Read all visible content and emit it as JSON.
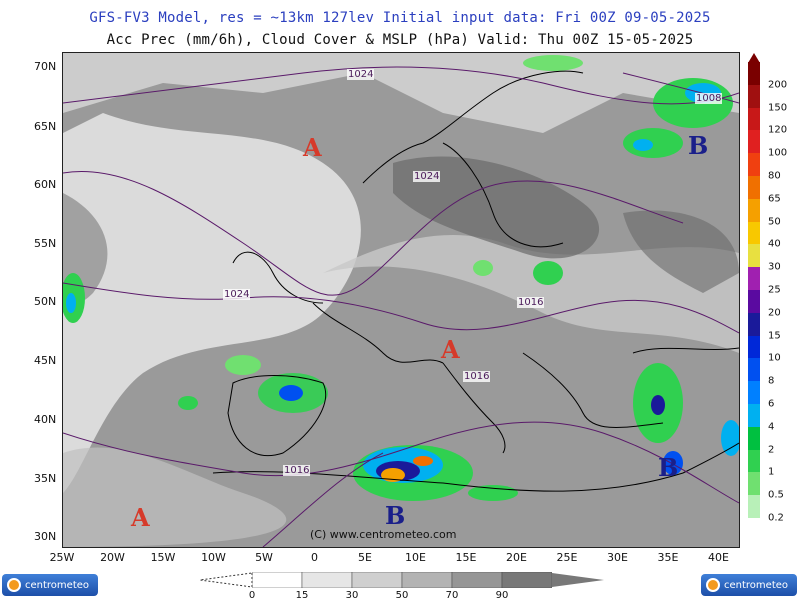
{
  "header": {
    "line1": "GFS-FV3 Model, res = ~13km 127lev    Initial input data: Fri 00Z 09-05-2025",
    "line2": "Acc Prec (mm/6h), Cloud Cover & MSLP (hPa)  Valid: Thu 00Z 15-05-2025"
  },
  "axes": {
    "lat_labels": [
      "70N",
      "65N",
      "60N",
      "55N",
      "50N",
      "45N",
      "40N",
      "35N",
      "30N"
    ],
    "lon_labels": [
      "25W",
      "20W",
      "15W",
      "10W",
      "5W",
      "0",
      "5E",
      "10E",
      "15E",
      "20E",
      "25E",
      "30E",
      "35E",
      "40E"
    ]
  },
  "precip_legend": {
    "labels": [
      "200",
      "150",
      "120",
      "100",
      "80",
      "65",
      "50",
      "40",
      "30",
      "25",
      "20",
      "15",
      "10",
      "8",
      "6",
      "4",
      "2",
      "1",
      "0.5",
      "0.2"
    ],
    "colors": [
      "#7a0000",
      "#a01010",
      "#c81818",
      "#e02020",
      "#f04010",
      "#f07000",
      "#f5a000",
      "#f8c800",
      "#e8e040",
      "#a020b0",
      "#5a0aa0",
      "#1a1a9a",
      "#0028d8",
      "#0050f0",
      "#0080ff",
      "#00b0f0",
      "#00c040",
      "#30d050",
      "#70e070",
      "#b8f0b8"
    ]
  },
  "cloud_cover": {
    "ticks": [
      "0",
      "15",
      "30",
      "50",
      "70",
      "90"
    ],
    "colors": [
      "#ffffff",
      "#e6e6e6",
      "#cfcfcf",
      "#b3b3b3",
      "#969696",
      "#787878"
    ]
  },
  "pressure_systems": {
    "highs": [
      {
        "label": "A"
      },
      {
        "label": "A"
      },
      {
        "label": "A"
      }
    ],
    "lows": [
      {
        "label": "B"
      },
      {
        "label": "B"
      },
      {
        "label": "B"
      }
    ]
  },
  "isobars": [
    "1024",
    "1024",
    "1024",
    "1016",
    "1016",
    "1016",
    "1008"
  ],
  "copyright": "(C) www.centrometeo.com",
  "logo_text": "centrometeo",
  "colors": {
    "high": "#d63a2a",
    "low": "#1a1f8a",
    "isobar": "#5a1a6a",
    "land_outline": "#000000"
  }
}
